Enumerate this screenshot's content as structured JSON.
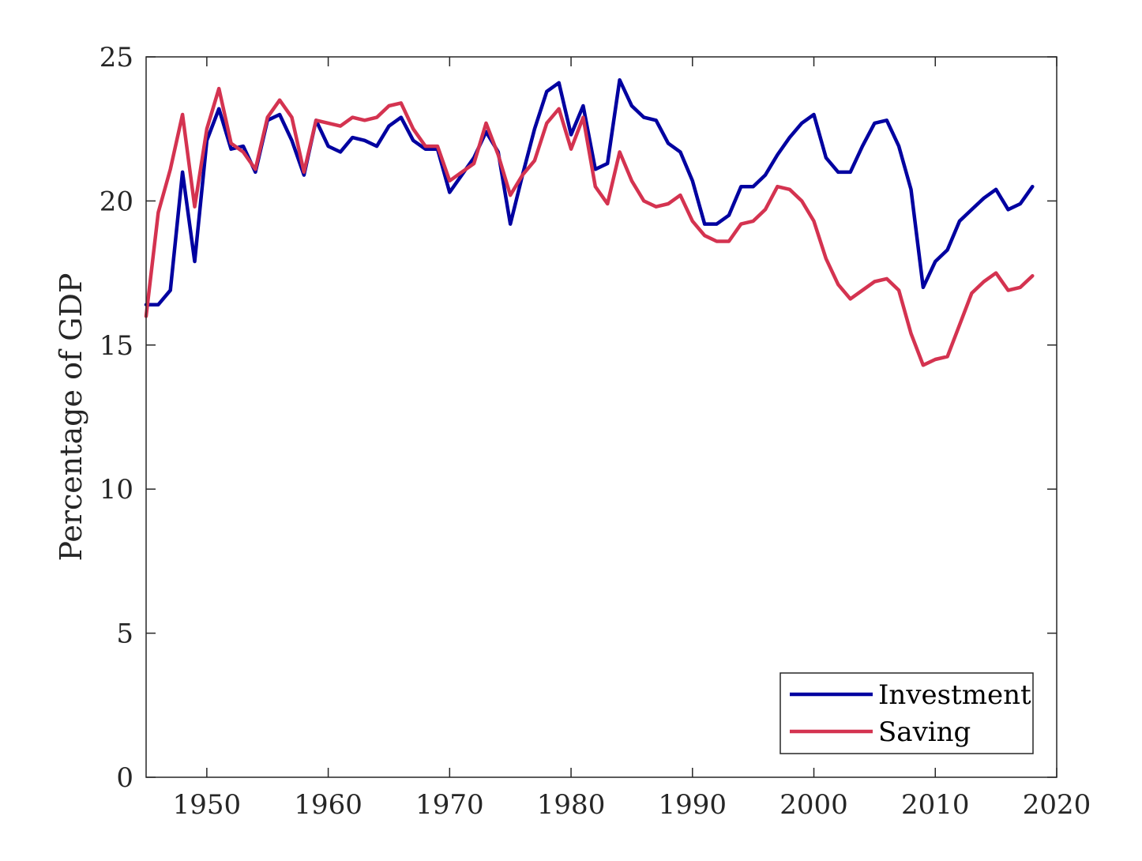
{
  "chart_data": {
    "type": "line",
    "title": "",
    "xlabel": "",
    "ylabel": "Percentage of GDP",
    "xlim": [
      1945,
      2020
    ],
    "ylim": [
      0,
      25
    ],
    "xticks": [
      1950,
      1960,
      1970,
      1980,
      1990,
      2000,
      2010,
      2020
    ],
    "yticks": [
      0,
      5,
      10,
      15,
      20,
      25
    ],
    "grid": false,
    "legend_position": "bottom-right",
    "x": [
      1945,
      1946,
      1947,
      1948,
      1949,
      1950,
      1951,
      1952,
      1953,
      1954,
      1955,
      1956,
      1957,
      1958,
      1959,
      1960,
      1961,
      1962,
      1963,
      1964,
      1965,
      1966,
      1967,
      1968,
      1969,
      1970,
      1971,
      1972,
      1973,
      1974,
      1975,
      1976,
      1977,
      1978,
      1979,
      1980,
      1981,
      1982,
      1983,
      1984,
      1985,
      1986,
      1987,
      1988,
      1989,
      1990,
      1991,
      1992,
      1993,
      1994,
      1995,
      1996,
      1997,
      1998,
      1999,
      2000,
      2001,
      2002,
      2003,
      2004,
      2005,
      2006,
      2007,
      2008,
      2009,
      2010,
      2011,
      2012,
      2013,
      2014,
      2015,
      2016,
      2017,
      2018
    ],
    "series": [
      {
        "name": "Investment",
        "color": "#0000a0",
        "values": [
          16.4,
          16.4,
          16.9,
          21.0,
          17.9,
          22.1,
          23.2,
          21.8,
          21.9,
          21.0,
          22.8,
          23.0,
          22.1,
          20.9,
          22.8,
          21.9,
          21.7,
          22.2,
          22.1,
          21.9,
          22.6,
          22.9,
          22.1,
          21.8,
          21.8,
          20.3,
          20.9,
          21.5,
          22.4,
          21.7,
          19.2,
          20.9,
          22.5,
          23.8,
          24.1,
          22.3,
          23.3,
          21.1,
          21.3,
          24.2,
          23.3,
          22.9,
          22.8,
          22.0,
          21.7,
          20.7,
          19.2,
          19.2,
          19.5,
          20.5,
          20.5,
          20.9,
          21.6,
          22.2,
          22.7,
          23.0,
          21.5,
          21.0,
          21.0,
          21.9,
          22.7,
          22.8,
          21.9,
          20.4,
          17.0,
          17.9,
          18.3,
          19.3,
          19.7,
          20.1,
          20.4,
          19.7,
          19.9,
          20.5
        ]
      },
      {
        "name": "Saving",
        "color": "#d43350",
        "values": [
          16.0,
          19.6,
          21.1,
          23.0,
          19.8,
          22.5,
          23.9,
          22.0,
          21.7,
          21.1,
          22.9,
          23.5,
          22.9,
          21.0,
          22.8,
          22.7,
          22.6,
          22.9,
          22.8,
          22.9,
          23.3,
          23.4,
          22.5,
          21.9,
          21.9,
          20.7,
          21.0,
          21.3,
          22.7,
          21.6,
          20.2,
          20.9,
          21.4,
          22.7,
          23.2,
          21.8,
          22.9,
          20.5,
          19.9,
          21.7,
          20.7,
          20.0,
          19.8,
          19.9,
          20.2,
          19.3,
          18.8,
          18.6,
          18.6,
          19.2,
          19.3,
          19.7,
          20.5,
          20.4,
          20.0,
          19.3,
          18.0,
          17.1,
          16.6,
          16.9,
          17.2,
          17.3,
          16.9,
          15.4,
          14.3,
          14.5,
          14.6,
          15.7,
          16.8,
          17.2,
          17.5,
          16.9,
          17.0,
          17.4
        ]
      }
    ]
  }
}
